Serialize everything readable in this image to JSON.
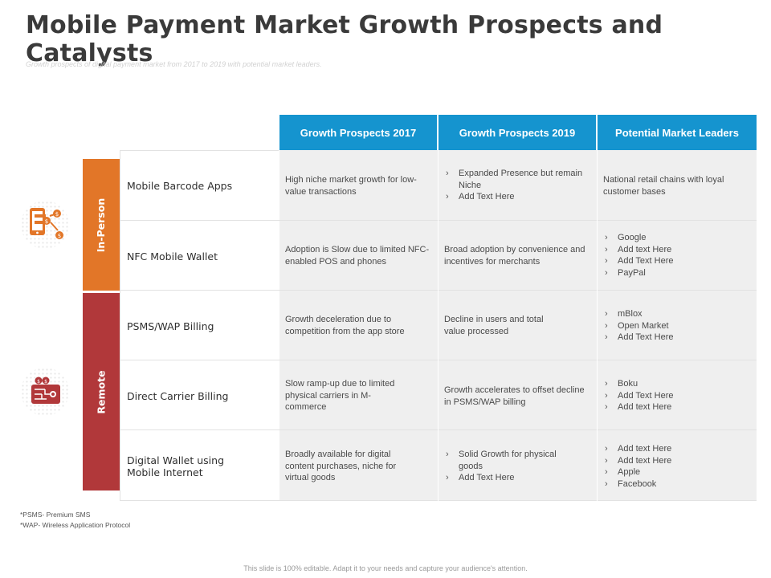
{
  "title": "Mobile Payment Market Growth Prospects and Catalysts",
  "subtitle": "Growth prospects of digital payment market from 2017 to 2019 with potential market leaders.",
  "headers": [
    "Growth Prospects 2017",
    "Growth Prospects 2019",
    "Potential Market Leaders"
  ],
  "groups": [
    {
      "label": "In-Person",
      "color": "#e27628",
      "icon": "mobile-payment-icon"
    },
    {
      "label": "Remote",
      "color": "#b1383a",
      "icon": "wallet-circuit-icon"
    }
  ],
  "rows": [
    {
      "label": "Mobile Barcode Apps",
      "gp2017": "High niche market growth for low-value transactions",
      "gp2019": [
        "Expanded Presence but remain Niche",
        "Add Text Here"
      ],
      "leaders": "National retail chains with loyal customer bases"
    },
    {
      "label": "NFC Mobile Wallet",
      "gp2017": "Adoption is Slow due to limited NFC- enabled POS and phones",
      "gp2019": "Broad adoption by convenience and incentives for merchants",
      "leaders": [
        "Google",
        "Add text Here",
        "Add Text Here",
        "PayPal"
      ]
    },
    {
      "label": "PSMS/WAP Billing",
      "gp2017": "Growth deceleration due to competition from the app store",
      "gp2019": "Decline in users and total value processed",
      "leaders": [
        "mBlox",
        "Open Market",
        "Add Text Here"
      ]
    },
    {
      "label": "Direct Carrier Billing",
      "gp2017": "Slow ramp-up due to limited physical carriers in M-commerce",
      "gp2019": "Growth accelerates to offset decline in PSMS/WAP billing",
      "leaders": [
        "Boku",
        "Add Text Here",
        "Add text Here"
      ]
    },
    {
      "label": "Digital Wallet using Mobile Internet",
      "gp2017": "Broadly available for digital content purchases, niche for virtual goods",
      "gp2019": [
        "Solid Growth for physical goods",
        "Add Text Here"
      ],
      "leaders": [
        "Add text Here",
        "Add text Here",
        "Apple",
        "Facebook"
      ]
    }
  ],
  "footnotes": [
    "*PSMS- Premium SMS",
    "*WAP- Wireless Application Protocol"
  ],
  "footer": "This slide is 100% editable. Adapt it to your needs and capture your audience's attention."
}
